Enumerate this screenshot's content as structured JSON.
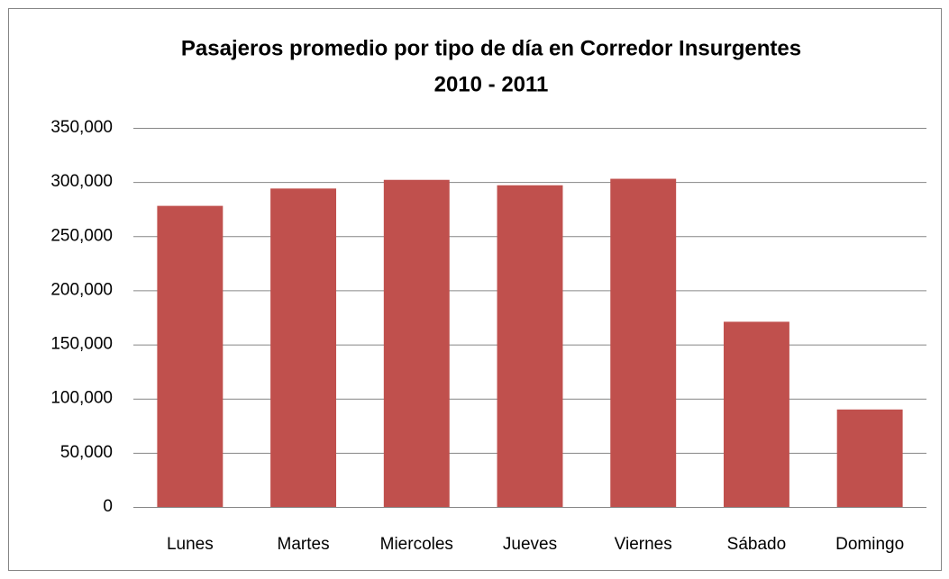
{
  "chart_data": {
    "type": "bar",
    "title": [
      "Pasajeros promedio por tipo de día en Corredor Insurgentes",
      "2010 - 2011"
    ],
    "categories": [
      "Lunes",
      "Martes",
      "Miercoles",
      "Jueves",
      "Viernes",
      "Sábado",
      "Domingo"
    ],
    "values": [
      278000,
      294000,
      302000,
      297000,
      303000,
      171000,
      90000
    ],
    "color": "#c0504d",
    "ylim": [
      0,
      350000
    ],
    "yticks": [
      0,
      {
        "value": 50000,
        "label": "50,000"
      },
      {
        "value": 100000,
        "label": "100,000"
      },
      {
        "value": 150000,
        "label": "150,000"
      },
      {
        "value": 200000,
        "label": "200,000"
      },
      {
        "value": 250000,
        "label": "250,000"
      },
      {
        "value": 300000,
        "label": "300,000"
      },
      {
        "value": 350000,
        "label": "350,000"
      }
    ],
    "grid": true
  }
}
